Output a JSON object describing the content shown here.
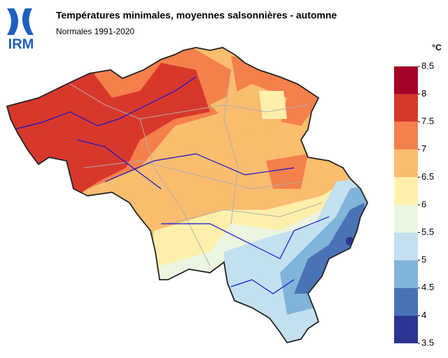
{
  "logo": {
    "text": "IRM"
  },
  "header": {
    "title": "Températures minimales, moyennes salsonnières - automne",
    "subtitle": "Normales 1991-2020"
  },
  "legend": {
    "unit": "°C",
    "ticks": [
      3.5,
      4,
      4.5,
      5,
      5.5,
      6,
      6.5,
      7,
      7.5,
      8,
      8.5
    ],
    "colors": [
      "#2c3592",
      "#4a72b7",
      "#80b4d9",
      "#c2e0f0",
      "#ebf6e0",
      "#feefab",
      "#fbbd6e",
      "#f4804b",
      "#d8382b",
      "#a50026"
    ]
  }
}
